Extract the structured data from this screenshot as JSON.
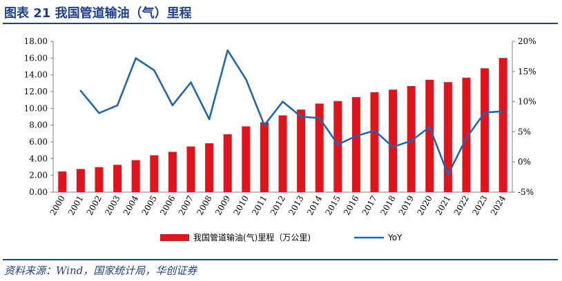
{
  "header": {
    "title": "图表 21   我国管道输油（气）里程"
  },
  "footer": {
    "source": "资料来源：Wind，国家统计局，华创证券"
  },
  "colors": {
    "bar": "#e3131b",
    "line": "#1f66b0",
    "rule": "#1f3f8f"
  },
  "chart_data": {
    "type": "bar+line",
    "categories": [
      "2000",
      "2001",
      "2002",
      "2003",
      "2004",
      "2005",
      "2006",
      "2007",
      "2008",
      "2009",
      "2010",
      "2011",
      "2012",
      "2013",
      "2014",
      "2015",
      "2016",
      "2017",
      "2018",
      "2019",
      "2020",
      "2021",
      "2022",
      "2023",
      "2024"
    ],
    "series": [
      {
        "name": "我国管道输油(气)里程（万公里)",
        "type": "bar",
        "axis": "left",
        "values": [
          2.47,
          2.76,
          2.98,
          3.26,
          3.82,
          4.4,
          4.81,
          5.45,
          5.83,
          6.91,
          7.85,
          8.33,
          9.16,
          9.85,
          10.57,
          10.87,
          11.34,
          11.93,
          12.23,
          12.66,
          13.41,
          13.13,
          13.66,
          14.78,
          16.01
        ]
      },
      {
        "name": "YoY",
        "type": "line",
        "axis": "right",
        "values": [
          null,
          11.8,
          8.1,
          9.4,
          17.2,
          15.2,
          9.4,
          13.2,
          7.1,
          18.5,
          13.7,
          6.1,
          10.0,
          7.5,
          7.3,
          2.9,
          4.3,
          5.2,
          2.5,
          3.5,
          5.8,
          -2.1,
          4.0,
          8.2,
          8.4
        ]
      }
    ],
    "y_left": {
      "min": 0,
      "max": 18,
      "step": 2,
      "tick_labels": [
        "0.00",
        "2.00",
        "4.00",
        "6.00",
        "8.00",
        "10.00",
        "12.00",
        "14.00",
        "16.00",
        "18.00"
      ]
    },
    "y_right": {
      "min": -5,
      "max": 20,
      "step": 5,
      "tick_labels": [
        "-5%",
        "0%",
        "5%",
        "10%",
        "15%",
        "20%"
      ]
    },
    "grid": false,
    "legend_position": "bottom"
  }
}
